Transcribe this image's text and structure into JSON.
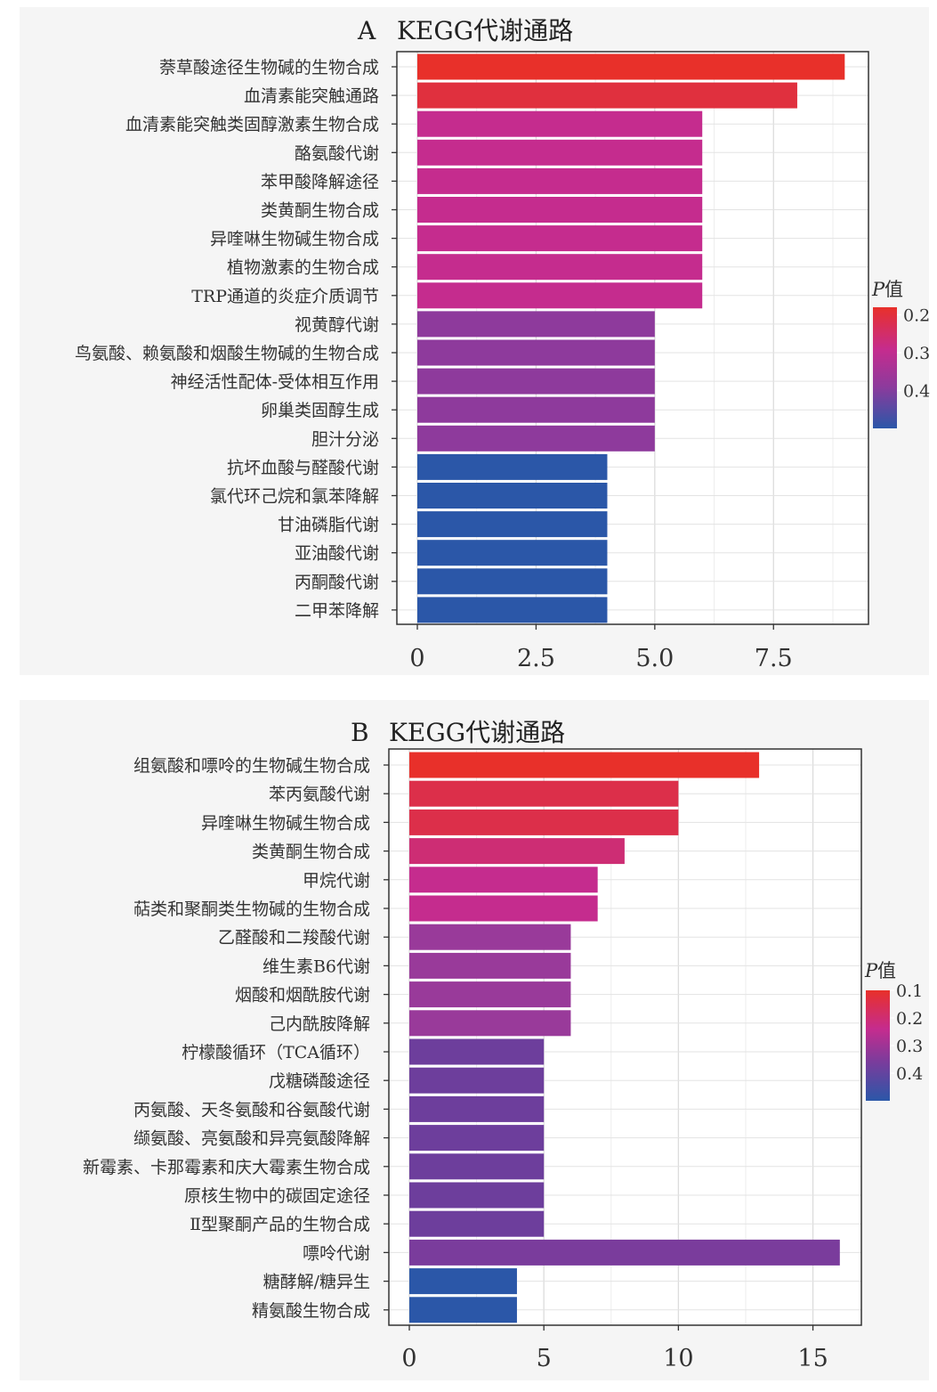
{
  "chart_data": [
    {
      "type": "bar",
      "orientation": "horizontal",
      "panel_letter": "A",
      "title": "KEGG代谢通路",
      "categories": [
        "萘草酸途径生物碱的生物合成",
        "血清素能突触通路",
        "血清素能突触类固醇激素生物合成",
        "酪氨酸代谢",
        "苯甲酸降解途径",
        "类黄酮生物合成",
        "异喹啉生物碱生物合成",
        "植物激素的生物合成",
        "TRP通道的炎症介质调节",
        "视黄醇代谢",
        "鸟氨酸、赖氨酸和烟酸生物碱的生物合成",
        "神经活性配体-受体相互作用",
        "卵巢类固醇生成",
        "胆汁分泌",
        "抗坏血酸与醛酸代谢",
        "氯代环己烷和氯苯降解",
        "甘油磷脂代谢",
        "亚油酸代谢",
        "丙酮酸代谢",
        "二甲苯降解"
      ],
      "values": [
        9,
        8,
        6,
        6,
        6,
        6,
        6,
        6,
        6,
        5,
        5,
        5,
        5,
        5,
        4,
        4,
        4,
        4,
        4,
        4
      ],
      "bar_colors": [
        "#e8302a",
        "#e0303e",
        "#c52c8e",
        "#c52c8e",
        "#c52c8e",
        "#c52c8e",
        "#c52c8e",
        "#c52c8e",
        "#c52c8e",
        "#8e3a9c",
        "#8e3a9c",
        "#8e3a9c",
        "#8e3a9c",
        "#8e3a9c",
        "#2b57a8",
        "#2b57a8",
        "#2b57a8",
        "#2b57a8",
        "#2b57a8",
        "#2b57a8"
      ],
      "xlim": [
        0,
        9.5
      ],
      "xticks": [
        0,
        2.5,
        5.0,
        7.5
      ],
      "xtick_labels": [
        "0",
        "2.5",
        "5.0",
        "7.5"
      ],
      "minor_xticks": [
        1.25,
        3.75,
        6.25,
        8.75
      ],
      "grid": true,
      "legend": {
        "title_italic": "P",
        "title_suffix": "值",
        "ticks": [
          "0.2",
          "0.3",
          "0.4"
        ],
        "tick_values": [
          0.2,
          0.3,
          0.4
        ],
        "range": [
          0.18,
          0.5
        ],
        "colors": [
          "#e8302a",
          "#c52c8e",
          "#8e3a9c",
          "#2b57a8"
        ],
        "placement": "right"
      }
    },
    {
      "type": "bar",
      "orientation": "horizontal",
      "panel_letter": "B",
      "title": "KEGG代谢通路",
      "categories": [
        "组氨酸和嘌呤的生物碱生物合成",
        "苯丙氨酸代谢",
        "异喹啉生物碱生物合成",
        "类黄酮生物合成",
        "甲烷代谢",
        "萜类和聚酮类生物碱的生物合成",
        "乙醛酸和二羧酸代谢",
        "维生素B6代谢",
        "烟酸和烟酰胺代谢",
        "己内酰胺降解",
        "柠檬酸循环（TCA循环）",
        "戊糖磷酸途径",
        "丙氨酸、天冬氨酸和谷氨酸代谢",
        "缬氨酸、亮氨酸和异亮氨酸降解",
        "新霉素、卡那霉素和庆大霉素生物合成",
        "原核生物中的碳固定途径",
        "Ⅱ型聚酮产品的生物合成",
        "嘌呤代谢",
        "糖酵解/糖异生",
        "精氨酸生物合成"
      ],
      "values": [
        13,
        10,
        10,
        8,
        7,
        7,
        6,
        6,
        6,
        6,
        5,
        5,
        5,
        5,
        5,
        5,
        5,
        16,
        4,
        4
      ],
      "bar_colors": [
        "#e8302a",
        "#dc2f4a",
        "#dc2f4a",
        "#cd2d74",
        "#c52c8e",
        "#c52c8e",
        "#993a9a",
        "#993a9a",
        "#993a9a",
        "#993a9a",
        "#6d3e9c",
        "#6d3e9c",
        "#6d3e9c",
        "#6d3e9c",
        "#6d3e9c",
        "#6d3e9c",
        "#6d3e9c",
        "#7a3c9c",
        "#2b57a8",
        "#2b57a8"
      ],
      "xlim": [
        0,
        16.8
      ],
      "xticks": [
        0,
        5,
        10,
        15
      ],
      "xtick_labels": [
        "0",
        "5",
        "10",
        "15"
      ],
      "minor_xticks": [
        2.5,
        7.5,
        12.5
      ],
      "grid": true,
      "legend": {
        "title_italic": "P",
        "title_suffix": "值",
        "ticks": [
          "0.1",
          "0.2",
          "0.3",
          "0.4"
        ],
        "tick_values": [
          0.1,
          0.2,
          0.3,
          0.4
        ],
        "range": [
          0.1,
          0.5
        ],
        "colors": [
          "#e8302a",
          "#c52c8e",
          "#7a3c9c",
          "#2b57a8"
        ],
        "placement": "right"
      }
    }
  ]
}
